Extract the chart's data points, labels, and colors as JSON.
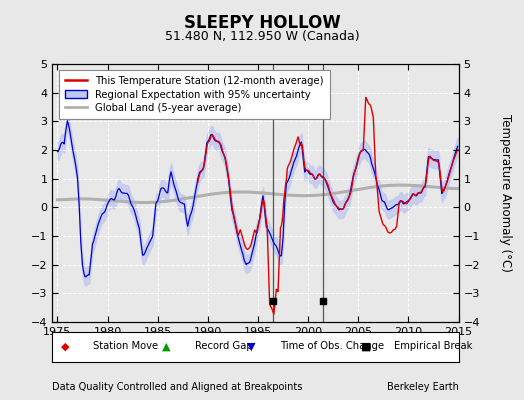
{
  "title": "SLEEPY HOLLOW",
  "subtitle": "51.480 N, 112.950 W (Canada)",
  "ylabel": "Temperature Anomaly (°C)",
  "xlabel_left": "Data Quality Controlled and Aligned at Breakpoints",
  "xlabel_right": "Berkeley Earth",
  "ylim": [
    -4,
    5
  ],
  "xlim": [
    1974.5,
    2015
  ],
  "xticks": [
    1975,
    1980,
    1985,
    1990,
    1995,
    2000,
    2005,
    2010,
    2015
  ],
  "yticks": [
    -4,
    -3,
    -2,
    -1,
    0,
    1,
    2,
    3,
    4,
    5
  ],
  "background_color": "#e8e8e8",
  "plot_bg_color": "#e8e8e8",
  "grid_color": "#ffffff",
  "empirical_breaks": [
    1996.5,
    2001.5
  ],
  "red_color": "#dd0000",
  "blue_color": "#0000cc",
  "blue_fill_color": "#c0c8f0",
  "gray_color": "#b0b0b0",
  "legend_items": [
    "This Temperature Station (12-month average)",
    "Regional Expectation with 95% uncertainty",
    "Global Land (5-year average)"
  ]
}
